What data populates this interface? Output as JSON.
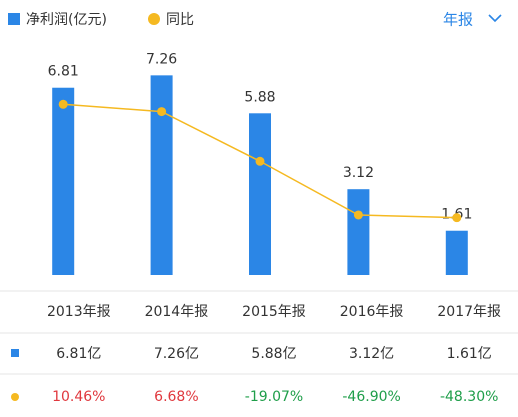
{
  "chart_data": {
    "type": "bar-line",
    "period_selector": "年报",
    "categories": [
      "2013年报",
      "2014年报",
      "2015年报",
      "2016年报",
      "2017年报"
    ],
    "series": [
      {
        "name": "净利润(亿元)",
        "type": "bar",
        "color": "#2b86e6",
        "values": [
          6.81,
          7.26,
          5.88,
          3.12,
          1.61
        ],
        "value_labels": [
          "6.81亿",
          "7.26亿",
          "5.88亿",
          "3.12亿",
          "1.61亿"
        ]
      },
      {
        "name": "同比",
        "type": "line",
        "axis": "y2",
        "color": "#f5b921",
        "values": [
          10.46,
          6.68,
          -19.07,
          -46.9,
          -48.3
        ],
        "value_labels": [
          "10.46%",
          "6.68%",
          "-19.07%",
          "-46.90%",
          "-48.30%"
        ]
      }
    ],
    "ylim": [
      0,
      8
    ],
    "y2lim": [
      -78,
      36
    ],
    "positive_color": "#e0383e",
    "negative_color": "#1f9e4a"
  }
}
